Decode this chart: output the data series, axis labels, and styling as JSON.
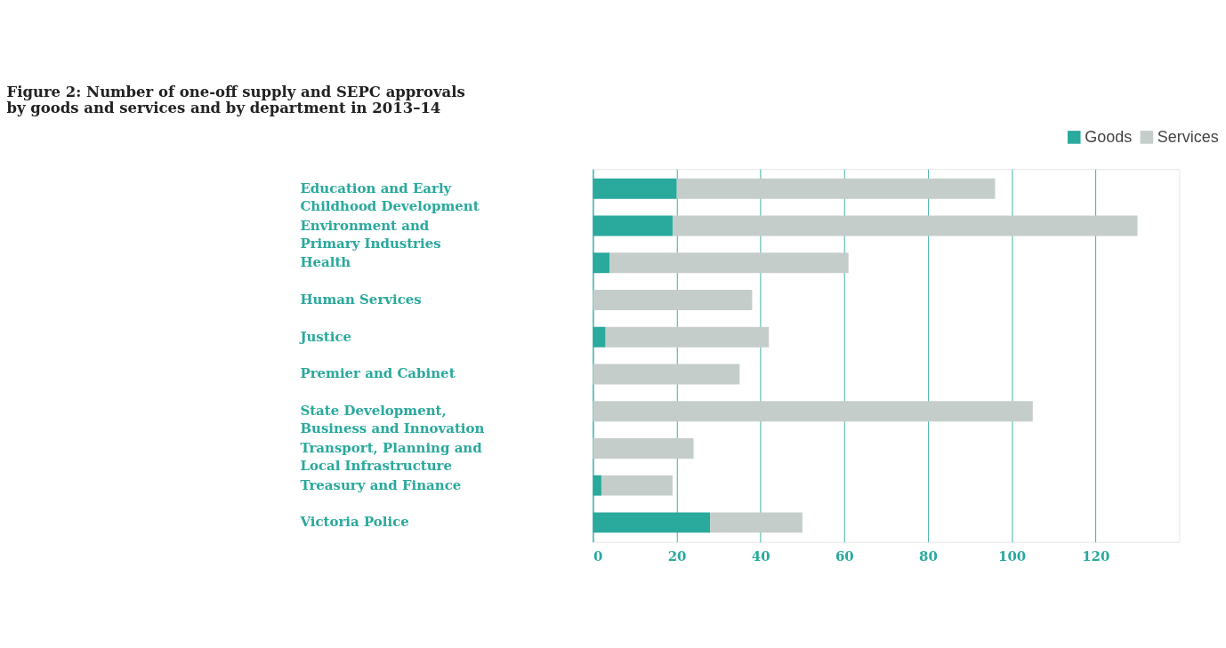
{
  "chart_data": {
    "type": "bar",
    "orientation": "horizontal",
    "stacked": true,
    "title": "Figure 2: Number of one-off supply and SEPC approvals\nby goods and services and by department in 2013–14",
    "categories": [
      "Education and Early\nChildhood Development",
      "Environment and\nPrimary Industries",
      "Health",
      "Human Services",
      "Justice",
      "Premier and Cabinet",
      "State Development,\nBusiness and Innovation",
      "Transport, Planning and\nLocal Infrastructure",
      "Treasury and Finance",
      "Victoria Police"
    ],
    "series": [
      {
        "name": "Goods",
        "color": "#2aa99d",
        "values": [
          20,
          19,
          4,
          0,
          3,
          0,
          0,
          0,
          2,
          28
        ]
      },
      {
        "name": "Services",
        "color": "#c5cdca",
        "values": [
          76,
          111,
          57,
          38,
          39,
          35,
          105,
          24,
          17,
          22
        ]
      }
    ],
    "xlim": [
      0,
      140
    ],
    "xticks": [
      0,
      20,
      40,
      60,
      80,
      100,
      120
    ],
    "grid": "x",
    "legend": "top right"
  }
}
